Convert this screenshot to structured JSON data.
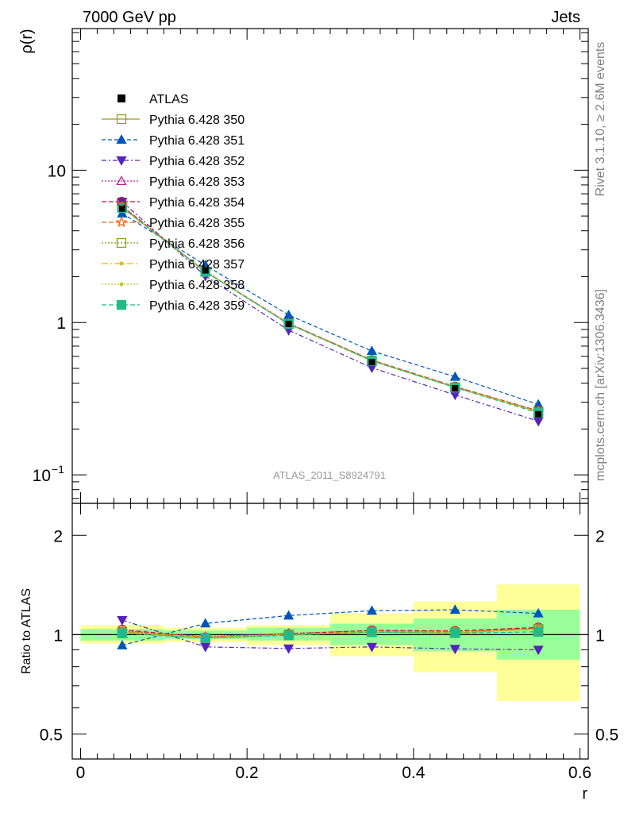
{
  "header": {
    "left": "7000 GeV pp",
    "right": "Jets"
  },
  "side": {
    "rivet": "Rivet 3.1.10, ≥ 2.6M events",
    "mcplots": "mcplots.cern.ch [arXiv:1306.3436]"
  },
  "analysis_label": "ATLAS_2011_S8924791",
  "axes": {
    "y_main": "ρ(r)",
    "y_ratio": "Ratio to ATLAS",
    "x": "r"
  },
  "ticks": {
    "main_y": [
      {
        "v": 0.1,
        "label": "10",
        "sup": "−1"
      },
      {
        "v": 1,
        "label": "1",
        "sup": ""
      },
      {
        "v": 10,
        "label": "10",
        "sup": ""
      }
    ],
    "ratio_y": [
      {
        "v": 0.5,
        "label": "0.5"
      },
      {
        "v": 1,
        "label": "1"
      },
      {
        "v": 2,
        "label": "2"
      }
    ],
    "x": [
      {
        "v": 0,
        "label": "0"
      },
      {
        "v": 0.2,
        "label": "0.2"
      },
      {
        "v": 0.4,
        "label": "0.4"
      },
      {
        "v": 0.6,
        "label": "0.6"
      }
    ]
  },
  "chart_data": {
    "type": "line",
    "log_y": true,
    "xlim": [
      -0.01,
      0.61
    ],
    "ylim": [
      0.065,
      85
    ],
    "ratio_ylim": [
      0.42,
      2.5
    ],
    "x": [
      0.05,
      0.15,
      0.25,
      0.35,
      0.45,
      0.55
    ],
    "bin_edges": [
      0,
      0.1,
      0.2,
      0.3,
      0.4,
      0.5,
      0.6
    ],
    "reference": {
      "name": "ATLAS",
      "color": "#000000",
      "values": [
        5.6,
        2.2,
        0.98,
        0.55,
        0.37,
        0.25
      ],
      "band_inner": [
        [
          0.96,
          1.04
        ],
        [
          0.97,
          1.03
        ],
        [
          0.96,
          1.05
        ],
        [
          0.93,
          1.08
        ],
        [
          0.89,
          1.12
        ],
        [
          0.84,
          1.19
        ]
      ],
      "band_outer": [
        [
          0.94,
          1.07
        ],
        [
          0.95,
          1.05
        ],
        [
          0.93,
          1.07
        ],
        [
          0.86,
          1.16
        ],
        [
          0.77,
          1.26
        ],
        [
          0.63,
          1.42
        ]
      ]
    },
    "series": [
      {
        "name": "Pythia 6.428 350",
        "color": "#999922",
        "dash": "",
        "marker": "square-open",
        "values": [
          5.7,
          2.15,
          0.98,
          0.56,
          0.375,
          0.26
        ]
      },
      {
        "name": "Pythia 6.428 351",
        "color": "#0055bb",
        "dash": "5,3",
        "marker": "triangle-up-filled",
        "values": [
          5.2,
          2.38,
          1.12,
          0.65,
          0.44,
          0.29
        ]
      },
      {
        "name": "Pythia 6.428 352",
        "color": "#5522bb",
        "dash": "6,3,2,3",
        "marker": "triangle-down-filled",
        "values": [
          6.2,
          2.02,
          0.89,
          0.505,
          0.335,
          0.225
        ]
      },
      {
        "name": "Pythia 6.428 353",
        "color": "#bb2299",
        "dash": "2,2",
        "marker": "triangle-up-open",
        "values": [
          5.75,
          2.17,
          0.99,
          0.565,
          0.378,
          0.262
        ]
      },
      {
        "name": "Pythia 6.428 354",
        "color": "#cc1133",
        "dash": "6,3",
        "marker": "circle-open",
        "values": [
          5.8,
          2.16,
          0.985,
          0.567,
          0.38,
          0.263
        ]
      },
      {
        "name": "Pythia 6.428 355",
        "color": "#ee6611",
        "dash": "6,3",
        "marker": "star-open",
        "values": [
          5.72,
          2.16,
          0.98,
          0.563,
          0.377,
          0.261
        ]
      },
      {
        "name": "Pythia 6.428 356",
        "color": "#889922",
        "dash": "2,2",
        "marker": "square-open",
        "values": [
          5.68,
          2.15,
          0.98,
          0.56,
          0.375,
          0.26
        ]
      },
      {
        "name": "Pythia 6.428 357",
        "color": "#ddbb11",
        "dash": "8,3,2,3",
        "marker": "dot",
        "values": [
          5.7,
          2.16,
          0.98,
          0.562,
          0.376,
          0.26
        ]
      },
      {
        "name": "Pythia 6.428 358",
        "color": "#bbcc22",
        "dash": "2,2",
        "marker": "dot",
        "values": [
          5.7,
          2.16,
          0.98,
          0.561,
          0.376,
          0.26
        ]
      },
      {
        "name": "Pythia 6.428 359",
        "color": "#22bb88",
        "dash": "6,3",
        "marker": "square-filled",
        "values": [
          5.65,
          2.15,
          0.975,
          0.56,
          0.374,
          0.255
        ]
      }
    ]
  }
}
